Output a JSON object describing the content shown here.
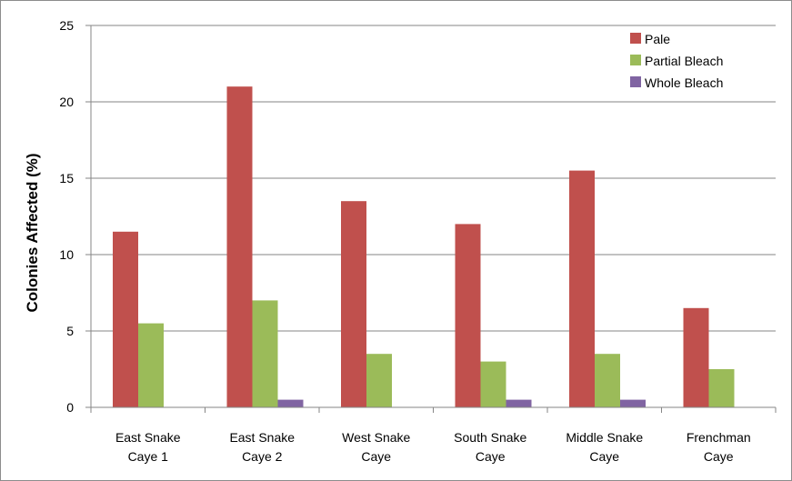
{
  "chart_data": {
    "type": "bar",
    "title": "",
    "xlabel": "",
    "ylabel": "Colonies Affected (%)",
    "ylim": [
      0,
      25
    ],
    "yticks": [
      0,
      5,
      10,
      15,
      20,
      25
    ],
    "grid": true,
    "legend_position": "top-right",
    "categories": [
      [
        "East Snake",
        "Caye 1"
      ],
      [
        "East Snake",
        "Caye 2"
      ],
      [
        "West Snake",
        "Caye"
      ],
      [
        "South Snake",
        "Caye"
      ],
      [
        "Middle Snake",
        "Caye"
      ],
      [
        "Frenchman",
        "Caye"
      ]
    ],
    "series": [
      {
        "name": "Pale",
        "color": "#c0504d",
        "values": [
          11.5,
          21,
          13.5,
          12,
          15.5,
          6.5
        ]
      },
      {
        "name": "Partial Bleach",
        "color": "#9bbb59",
        "values": [
          5.5,
          7,
          3.5,
          3,
          3.5,
          2.5
        ]
      },
      {
        "name": "Whole Bleach",
        "color": "#8064a2",
        "values": [
          0,
          0.5,
          0,
          0.5,
          0.5,
          0
        ]
      }
    ]
  }
}
